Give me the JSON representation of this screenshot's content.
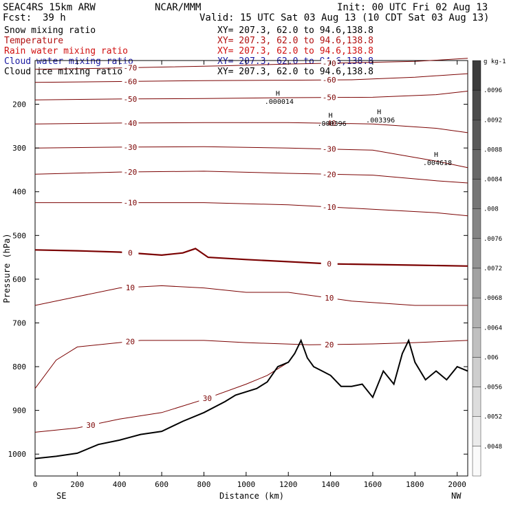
{
  "header": {
    "title": "SEAC4RS 15km ARW",
    "center": "NCAR/MMM",
    "init": "Init: 00 UTC Fri 02 Aug 13",
    "fcst_label": "Fcst:",
    "fcst_value": "39 h",
    "valid": "Valid: 15 UTC Sat 03 Aug 13 (10 CDT Sat 03 Aug 13)"
  },
  "fields": [
    {
      "name": "Snow mixing ratio",
      "xy": "XY= 207.3, 62.0 to 94.6,138.8",
      "color": "#000000"
    },
    {
      "name": "Temperature",
      "xy": "XY= 207.3, 62.0 to 94.6,138.8",
      "color": "#b01010"
    },
    {
      "name": "Rain water mixing ratio",
      "xy": "XY= 207.3, 62.0 to 94.6,138.8",
      "color": "#d01010"
    },
    {
      "name": "Cloud water mixing ratio",
      "xy": "XY= 207.3, 62.0 to 94.6,138.8",
      "color": "#1a1aa0"
    },
    {
      "name": "Cloud ice mixing ratio",
      "xy": "XY= 207.3, 62.0 to 94.6,138.8",
      "color": "#000000"
    }
  ],
  "chart_data": {
    "type": "line",
    "xlabel": "Distance (km)",
    "ylabel": "Pressure (hPa)",
    "xlim": [
      0,
      2050
    ],
    "ylim": [
      1050,
      100
    ],
    "x_ticks": [
      0,
      200,
      400,
      600,
      800,
      1000,
      1200,
      1400,
      1600,
      1800,
      2000
    ],
    "y_ticks": [
      200,
      300,
      400,
      500,
      600,
      700,
      800,
      900,
      1000
    ],
    "x_end_labels": {
      "left": "SE",
      "right": "NW"
    },
    "line_color": "#7a0000",
    "terrain_color": "#000000",
    "terrain": [
      [
        0,
        1010
      ],
      [
        100,
        1005
      ],
      [
        200,
        998
      ],
      [
        300,
        978
      ],
      [
        400,
        968
      ],
      [
        500,
        955
      ],
      [
        600,
        948
      ],
      [
        700,
        925
      ],
      [
        800,
        905
      ],
      [
        900,
        880
      ],
      [
        950,
        865
      ],
      [
        1050,
        850
      ],
      [
        1100,
        835
      ],
      [
        1150,
        800
      ],
      [
        1200,
        790
      ],
      [
        1230,
        770
      ],
      [
        1260,
        740
      ],
      [
        1290,
        780
      ],
      [
        1320,
        800
      ],
      [
        1360,
        810
      ],
      [
        1400,
        820
      ],
      [
        1450,
        845
      ],
      [
        1500,
        845
      ],
      [
        1550,
        840
      ],
      [
        1600,
        870
      ],
      [
        1650,
        810
      ],
      [
        1700,
        840
      ],
      [
        1740,
        770
      ],
      [
        1770,
        740
      ],
      [
        1800,
        790
      ],
      [
        1850,
        830
      ],
      [
        1900,
        810
      ],
      [
        1950,
        830
      ],
      [
        2000,
        800
      ],
      [
        2050,
        810
      ]
    ],
    "isotherms": [
      {
        "label": "-70",
        "points": [
          [
            0,
            120
          ],
          [
            300,
            118
          ],
          [
            600,
            115
          ],
          [
            900,
            112
          ],
          [
            1200,
            108
          ],
          [
            1500,
            105
          ],
          [
            1800,
            102
          ],
          [
            2050,
            95
          ]
        ]
      },
      {
        "label": "-60",
        "points": [
          [
            0,
            150
          ],
          [
            400,
            148
          ],
          [
            800,
            146
          ],
          [
            1200,
            145
          ],
          [
            1500,
            144
          ],
          [
            1800,
            138
          ],
          [
            2050,
            130
          ]
        ]
      },
      {
        "label": "-50",
        "points": [
          [
            0,
            190
          ],
          [
            400,
            188
          ],
          [
            800,
            187
          ],
          [
            1200,
            185
          ],
          [
            1600,
            184
          ],
          [
            1900,
            178
          ],
          [
            2050,
            170
          ]
        ]
      },
      {
        "label": "-40",
        "points": [
          [
            0,
            245
          ],
          [
            400,
            243
          ],
          [
            800,
            242
          ],
          [
            1200,
            242
          ],
          [
            1600,
            245
          ],
          [
            1900,
            255
          ],
          [
            2050,
            265
          ]
        ]
      },
      {
        "label": "-30",
        "points": [
          [
            0,
            300
          ],
          [
            400,
            298
          ],
          [
            800,
            297
          ],
          [
            1200,
            300
          ],
          [
            1600,
            305
          ],
          [
            1900,
            330
          ],
          [
            2050,
            345
          ]
        ]
      },
      {
        "label": "-20",
        "points": [
          [
            0,
            360
          ],
          [
            400,
            355
          ],
          [
            800,
            353
          ],
          [
            1200,
            358
          ],
          [
            1600,
            362
          ],
          [
            1900,
            375
          ],
          [
            2050,
            380
          ]
        ]
      },
      {
        "label": "-10",
        "points": [
          [
            0,
            425
          ],
          [
            400,
            425
          ],
          [
            800,
            425
          ],
          [
            1200,
            430
          ],
          [
            1600,
            440
          ],
          [
            1900,
            448
          ],
          [
            2050,
            455
          ]
        ]
      },
      {
        "label": "0",
        "points": [
          [
            0,
            533
          ],
          [
            200,
            535
          ],
          [
            400,
            538
          ],
          [
            600,
            545
          ],
          [
            700,
            540
          ],
          [
            760,
            530
          ],
          [
            820,
            550
          ],
          [
            1000,
            555
          ],
          [
            1400,
            565
          ],
          [
            1800,
            568
          ],
          [
            2050,
            570
          ]
        ]
      },
      {
        "label": "10",
        "points": [
          [
            0,
            660
          ],
          [
            200,
            640
          ],
          [
            400,
            620
          ],
          [
            600,
            615
          ],
          [
            800,
            620
          ],
          [
            1000,
            630
          ],
          [
            1200,
            630
          ],
          [
            1500,
            650
          ],
          [
            1800,
            660
          ],
          [
            2050,
            660
          ]
        ]
      },
      {
        "label": "20",
        "points": [
          [
            0,
            850
          ],
          [
            100,
            785
          ],
          [
            200,
            755
          ],
          [
            500,
            740
          ],
          [
            800,
            740
          ],
          [
            1000,
            745
          ],
          [
            1300,
            750
          ],
          [
            1600,
            748
          ],
          [
            1800,
            745
          ],
          [
            2050,
            740
          ]
        ]
      },
      {
        "label": "30",
        "points": [
          [
            0,
            950
          ],
          [
            200,
            940
          ],
          [
            400,
            920
          ],
          [
            600,
            905
          ],
          [
            800,
            875
          ],
          [
            1000,
            840
          ],
          [
            1100,
            820
          ],
          [
            1200,
            790
          ]
        ]
      }
    ],
    "maxima": [
      {
        "label": "H",
        "value": ".000014",
        "x": 1150,
        "p": 190
      },
      {
        "label": "H",
        "value": ".000396",
        "x": 1400,
        "p": 240
      },
      {
        "label": "H",
        "value": ".003396",
        "x": 1630,
        "p": 232
      },
      {
        "label": "H",
        "value": ".004618",
        "x": 1900,
        "p": 330
      }
    ],
    "colorbar": {
      "unit": "g kg-1",
      "labels": [
        ".0096",
        ".0092",
        ".0088",
        ".0084",
        ".008",
        ".0076",
        ".0072",
        ".0068",
        ".0064",
        ".006",
        ".0056",
        ".0052",
        ".0048"
      ]
    }
  }
}
